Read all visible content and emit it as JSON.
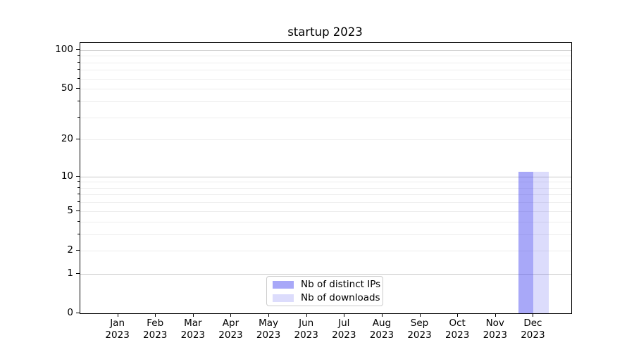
{
  "chart_data": {
    "type": "bar",
    "title": "startup 2023",
    "categories": [
      "Jan",
      "Feb",
      "Mar",
      "Apr",
      "May",
      "Jun",
      "Jul",
      "Aug",
      "Sep",
      "Oct",
      "Nov",
      "Dec"
    ],
    "year_label": "2023",
    "series": [
      {
        "name": "Nb of distinct IPs",
        "color": "rgba(70,70,240,0.47)",
        "values": [
          0,
          0,
          0,
          0,
          0,
          0,
          0,
          0,
          0,
          0,
          0,
          11
        ]
      },
      {
        "name": "Nb of downloads",
        "color": "rgba(70,70,240,0.19)",
        "values": [
          0,
          0,
          0,
          0,
          0,
          0,
          0,
          0,
          0,
          0,
          0,
          11
        ]
      }
    ],
    "yscale": "log1p",
    "ylim": [
      0,
      113
    ],
    "yticks": [
      0,
      1,
      2,
      5,
      10,
      20,
      50,
      100
    ],
    "ytick_labels": [
      "0",
      "1",
      "2",
      "5",
      "10",
      "20",
      "50",
      "100"
    ],
    "grid": {
      "major_values": [
        1,
        10,
        100
      ],
      "minor_values": [
        2,
        3,
        4,
        5,
        6,
        7,
        8,
        9,
        20,
        30,
        40,
        50,
        60,
        70,
        80,
        90
      ],
      "minor_tickmark_values": [
        3,
        4,
        6,
        7,
        8,
        9,
        30,
        40,
        60,
        70,
        80,
        90
      ],
      "major_color": "#c8c8c8",
      "minor_color": "#ededed"
    },
    "bar_group_width_fraction": 0.8,
    "legend_position": "lower center",
    "spine_color": "#000000"
  }
}
